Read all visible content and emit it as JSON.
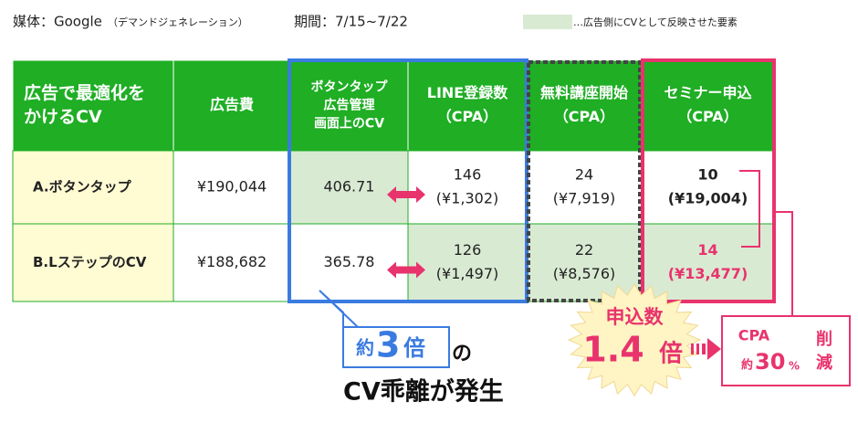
{
  "header": {
    "media": "媒体：Google",
    "media_note": "（デマンドジェネレーション）",
    "period": "期間：7/15~7/22",
    "legend": "…広告側にCVとして反映させた要素"
  },
  "table": {
    "headers": [
      [
        "広告で最適化を",
        "かけるCV"
      ],
      [
        "広告費"
      ],
      [
        "ボタンタップ",
        "広告管理",
        "画面上のCV"
      ],
      [
        "LINE登録数",
        "（CPA）"
      ],
      [
        "無料講座開始",
        "（CPA）"
      ],
      [
        "セミナー申込",
        "（CPA）"
      ]
    ],
    "rows": [
      [
        [
          "A.ボタンタップ"
        ],
        [
          "¥190,044"
        ],
        [
          "406.71"
        ],
        [
          "146",
          "(¥1,302)"
        ],
        [
          "24",
          "(¥7,919)"
        ],
        [
          "10",
          "(¥19,004)"
        ]
      ],
      [
        [
          "B.LステップのCV"
        ],
        [
          "¥188,682"
        ],
        [
          "365.78"
        ],
        [
          "126",
          "(¥1,497)"
        ],
        [
          "22",
          "(¥8,576)"
        ],
        [
          "14",
          "(¥13,477)"
        ]
      ]
    ]
  },
  "callout": {
    "prefix": "約",
    "number": "3",
    "suffix": "倍",
    "particle": "の",
    "text": "CV乖離が発生"
  },
  "badge": {
    "line1": "申込数",
    "number": "1.4",
    "suffix": "倍"
  },
  "result": {
    "label": "CPA",
    "prefix": "約",
    "number": "30",
    "unit": "%",
    "verb": [
      "削",
      "減"
    ]
  }
}
